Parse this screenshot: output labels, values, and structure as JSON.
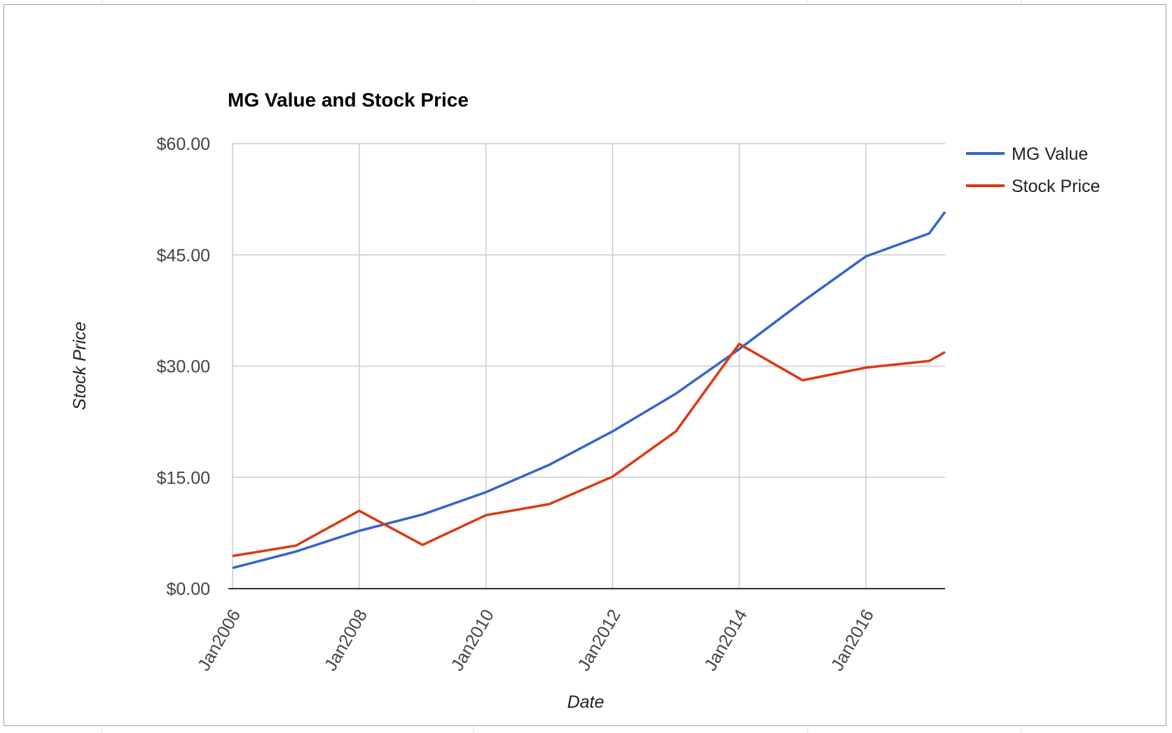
{
  "chart_data": {
    "type": "line",
    "title": "MG Value and Stock Price",
    "xlabel": "Date",
    "ylabel": "Stock Price",
    "x_ticks": [
      "Jan2006",
      "Jan2008",
      "Jan2010",
      "Jan2012",
      "Jan2014",
      "Jan2016"
    ],
    "y_ticks": [
      "$0.00",
      "$15.00",
      "$30.00",
      "$45.00",
      "$60.00"
    ],
    "ylim": [
      0,
      60
    ],
    "xlim": [
      "2006-01",
      "2017-04"
    ],
    "grid": true,
    "legend_position": "right",
    "x": [
      "2006-01",
      "2007-01",
      "2008-01",
      "2009-01",
      "2010-01",
      "2011-01",
      "2012-01",
      "2013-01",
      "2014-01",
      "2015-01",
      "2016-01",
      "2017-01",
      "2017-04"
    ],
    "series": [
      {
        "name": "MG Value",
        "color": "#3366cc",
        "values": [
          2.8,
          5.0,
          7.8,
          10.0,
          13.0,
          16.7,
          21.2,
          26.3,
          32.3,
          38.7,
          44.8,
          47.9,
          50.8
        ]
      },
      {
        "name": "Stock Price",
        "color": "#dc3912",
        "values": [
          4.4,
          5.8,
          10.5,
          5.9,
          9.9,
          11.4,
          15.1,
          21.2,
          33.0,
          28.1,
          29.8,
          30.7,
          31.9
        ]
      }
    ]
  }
}
